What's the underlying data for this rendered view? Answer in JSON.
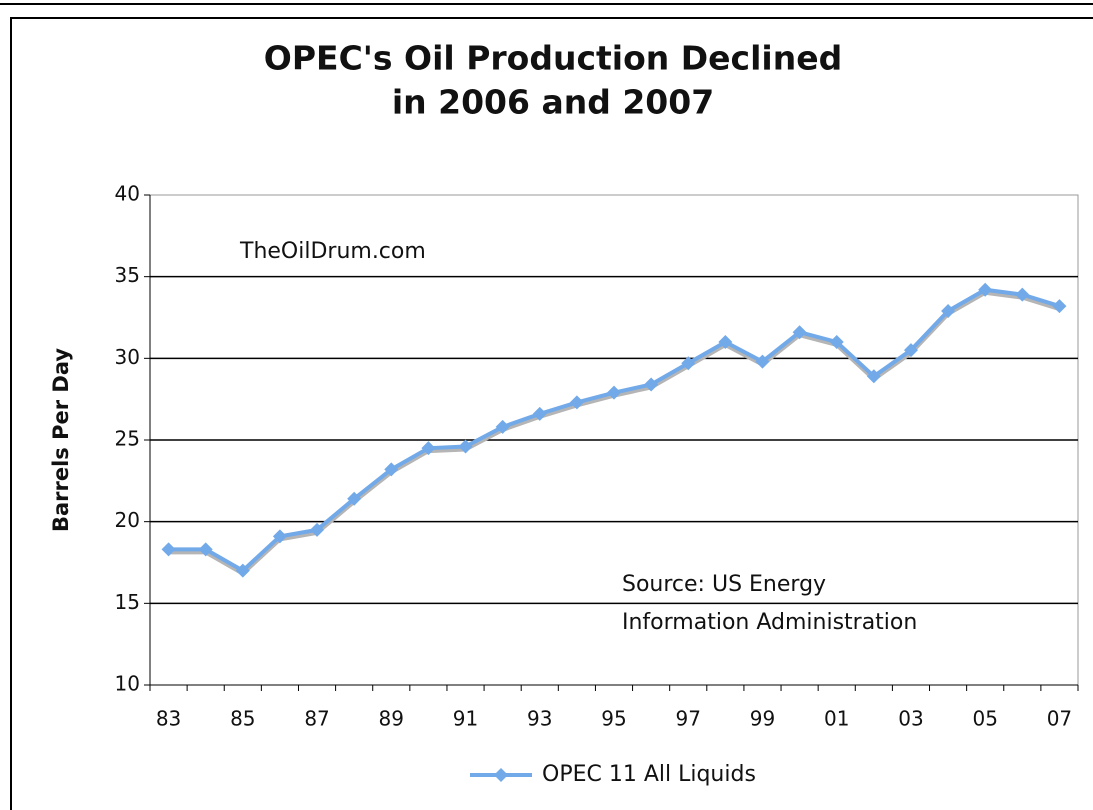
{
  "chart_data": {
    "type": "line",
    "title": [
      "OPEC's Oil Production Declined",
      "in 2006 and 2007"
    ],
    "y_label": "Barrels Per Day",
    "annotations": [
      "TheOilDrum.com",
      "Source: US Energy",
      "Information Administration"
    ],
    "categories": [
      "83",
      null,
      "85",
      null,
      "87",
      null,
      "89",
      null,
      "91",
      null,
      "93",
      null,
      "95",
      null,
      "97",
      null,
      "99",
      null,
      "01",
      null,
      "03",
      null,
      "05",
      null,
      "07"
    ],
    "series": [
      {
        "name": "OPEC 11 All Liquids",
        "color": "#72a9e8",
        "values": [
          18.3,
          18.3,
          17.0,
          19.1,
          19.5,
          21.4,
          23.2,
          24.5,
          24.6,
          25.8,
          26.6,
          27.3,
          27.9,
          28.4,
          29.7,
          31.0,
          29.8,
          31.6,
          31.0,
          28.9,
          30.5,
          32.9,
          34.2,
          33.9,
          33.2
        ]
      }
    ],
    "ylim": [
      10,
      40
    ],
    "yticks": [
      10,
      15,
      20,
      25,
      30,
      35,
      40
    ],
    "grid": true,
    "legend": "bottom"
  }
}
